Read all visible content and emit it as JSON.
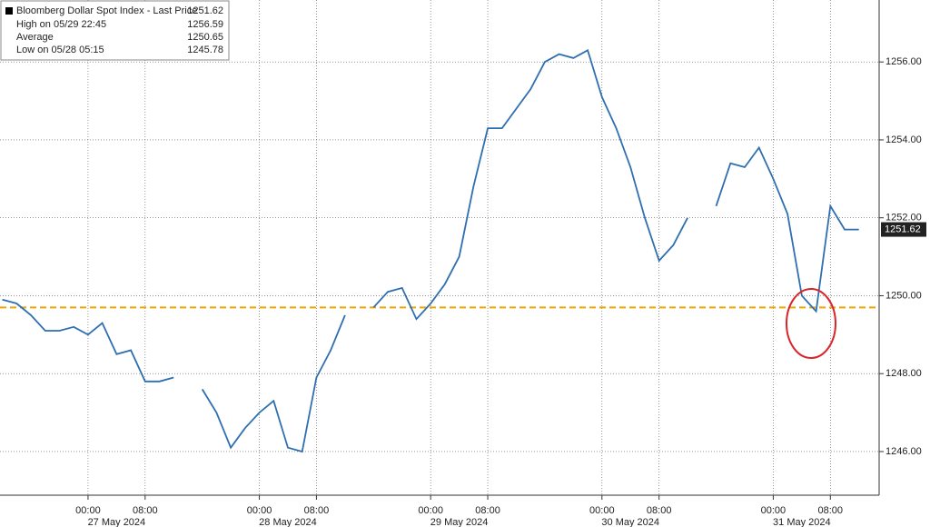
{
  "chart_data": {
    "type": "line",
    "legend": {
      "title": "Bloomberg Dollar Spot Index - Last Price",
      "last": 1251.62,
      "entries": [
        {
          "label": "High on 05/29 22:45",
          "value": 1256.59
        },
        {
          "label": "Average",
          "value": 1250.65
        },
        {
          "label": "Low on 05/28 05:15",
          "value": 1245.78
        }
      ]
    },
    "x": [
      "2024-05-26 12:00",
      "2024-05-26 14:00",
      "2024-05-26 16:00",
      "2024-05-26 18:00",
      "2024-05-26 20:00",
      "2024-05-26 22:00",
      "2024-05-27 00:00",
      "2024-05-27 02:00",
      "2024-05-27 04:00",
      "2024-05-27 06:00",
      "2024-05-27 08:00",
      "2024-05-27 10:00",
      "2024-05-27 12:00",
      "2024-05-27 14:00",
      "2024-05-27 16:00",
      "2024-05-27 18:00",
      "2024-05-27 20:00",
      "2024-05-27 22:00",
      "2024-05-28 00:00",
      "2024-05-28 02:00",
      "2024-05-28 04:00",
      "2024-05-28 06:00",
      "2024-05-28 08:00",
      "2024-05-28 10:00",
      "2024-05-28 12:00",
      "2024-05-28 14:00",
      "2024-05-28 16:00",
      "2024-05-28 18:00",
      "2024-05-28 20:00",
      "2024-05-28 22:00",
      "2024-05-29 00:00",
      "2024-05-29 02:00",
      "2024-05-29 04:00",
      "2024-05-29 06:00",
      "2024-05-29 08:00",
      "2024-05-29 10:00",
      "2024-05-29 12:00",
      "2024-05-29 14:00",
      "2024-05-29 16:00",
      "2024-05-29 18:00",
      "2024-05-29 20:00",
      "2024-05-29 22:00",
      "2024-05-30 00:00",
      "2024-05-30 02:00",
      "2024-05-30 04:00",
      "2024-05-30 06:00",
      "2024-05-30 08:00",
      "2024-05-30 10:00",
      "2024-05-30 12:00",
      "2024-05-30 14:00",
      "2024-05-30 16:00",
      "2024-05-30 18:00",
      "2024-05-30 20:00",
      "2024-05-30 22:00",
      "2024-05-31 00:00",
      "2024-05-31 02:00",
      "2024-05-31 04:00",
      "2024-05-31 06:00",
      "2024-05-31 08:00",
      "2024-05-31 10:00",
      "2024-05-31 12:00"
    ],
    "series": [
      {
        "name": "Bloomberg Dollar Spot Index - Last Price",
        "color": "#2f6fb0",
        "values": [
          1249.9,
          1249.8,
          1249.5,
          1249.1,
          1249.1,
          1249.2,
          1249.0,
          1249.3,
          1248.5,
          1248.6,
          1247.8,
          1247.8,
          1247.9,
          null,
          1247.6,
          1247.0,
          1246.1,
          1246.6,
          1247.0,
          1247.3,
          1246.1,
          1246.0,
          1247.9,
          1248.6,
          1249.5,
          null,
          1249.7,
          1250.1,
          1250.2,
          1249.4,
          1249.8,
          1250.3,
          1251.0,
          1252.8,
          1254.3,
          1254.3,
          1254.8,
          1255.3,
          1256.0,
          1256.2,
          1256.1,
          1256.3,
          1255.1,
          1254.3,
          1253.3,
          1252.0,
          1250.9,
          1251.3,
          1252.0,
          null,
          1252.3,
          1253.4,
          1253.3,
          1253.8,
          1253.0,
          1252.1,
          1250.0,
          1249.6,
          1252.3,
          1251.7,
          1251.7
        ]
      }
    ],
    "reference_line": {
      "value": 1249.7,
      "color": "#f0a400"
    },
    "xlim": [
      "2024-05-26 11:40",
      "2024-05-31 14:50"
    ],
    "xticks": [
      {
        "value": "2024-05-27 00:00",
        "label": "00:00"
      },
      {
        "value": "2024-05-27 08:00",
        "label": "08:00"
      },
      {
        "value": "2024-05-28 00:00",
        "label": "00:00"
      },
      {
        "value": "2024-05-28 08:00",
        "label": "08:00"
      },
      {
        "value": "2024-05-29 00:00",
        "label": "00:00"
      },
      {
        "value": "2024-05-29 08:00",
        "label": "08:00"
      },
      {
        "value": "2024-05-30 00:00",
        "label": "00:00"
      },
      {
        "value": "2024-05-30 08:00",
        "label": "08:00"
      },
      {
        "value": "2024-05-31 00:00",
        "label": "00:00"
      },
      {
        "value": "2024-05-31 08:00",
        "label": "08:00"
      }
    ],
    "date_labels": [
      {
        "value": "2024-05-27 04:00",
        "label": "27 May 2024"
      },
      {
        "value": "2024-05-28 04:00",
        "label": "28 May 2024"
      },
      {
        "value": "2024-05-29 04:00",
        "label": "29 May 2024"
      },
      {
        "value": "2024-05-30 04:00",
        "label": "30 May 2024"
      },
      {
        "value": "2024-05-31 04:00",
        "label": "31 May 2024"
      }
    ],
    "ylim": [
      1244.88,
      1257.59
    ],
    "yticks": [
      {
        "value": 1246,
        "label": "1246.00"
      },
      {
        "value": 1248,
        "label": "1248.00"
      },
      {
        "value": 1250,
        "label": "1250.00"
      },
      {
        "value": 1252,
        "label": "1252.00"
      },
      {
        "value": 1254,
        "label": "1254.00"
      },
      {
        "value": 1256,
        "label": "1256.00"
      }
    ],
    "grid": true
  }
}
